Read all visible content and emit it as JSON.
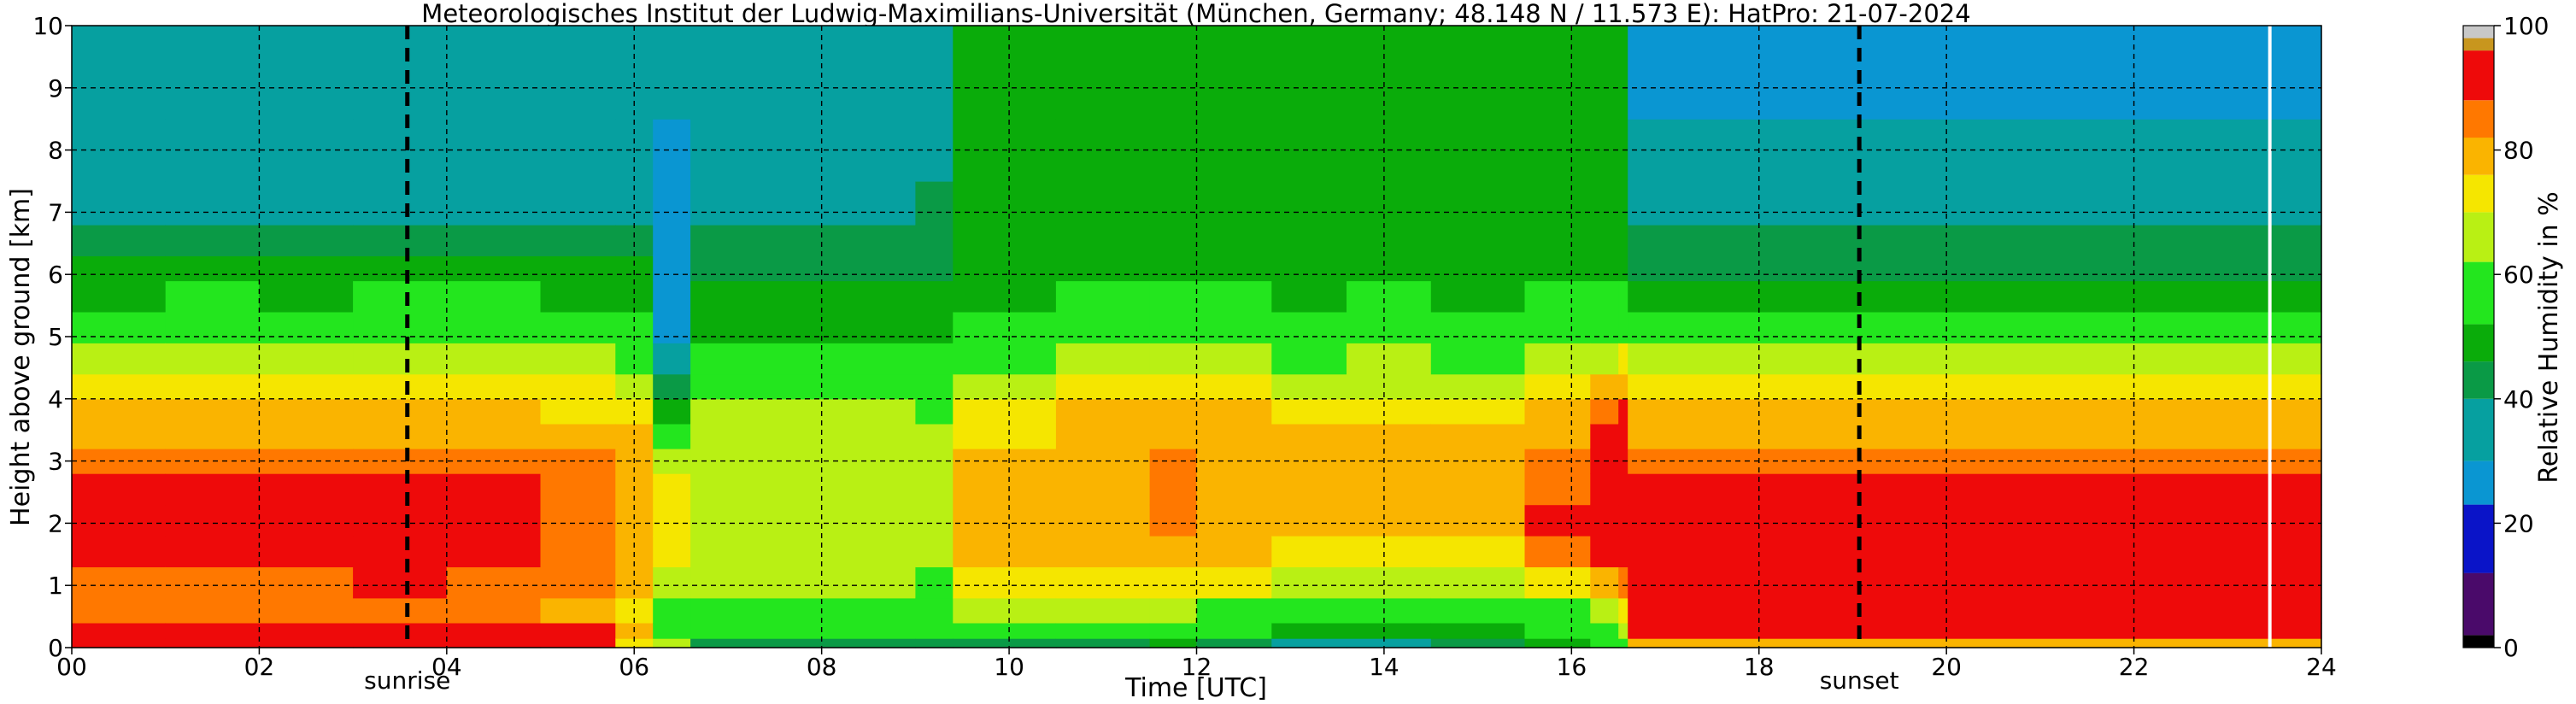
{
  "chart_data": {
    "type": "heatmap",
    "title": "Meteorologisches Institut der Ludwig-Maximilians-Universität (München, Germany; 48.148 N / 11.573 E):    HatPro: 21-07-2024",
    "xlabel": "Time [UTC]",
    "ylabel": "Height above ground [km]",
    "colorbar_label": "Relative Humidity in %",
    "xlim": [
      0,
      24
    ],
    "ylim": [
      0,
      10
    ],
    "clim": [
      0,
      100
    ],
    "x_ticks": [
      0,
      2,
      4,
      6,
      8,
      10,
      12,
      14,
      16,
      18,
      20,
      22,
      24
    ],
    "x_tick_labels": [
      "00",
      "02",
      "04",
      "06",
      "08",
      "10",
      "12",
      "14",
      "16",
      "18",
      "20",
      "22",
      "24"
    ],
    "y_ticks": [
      0,
      1,
      2,
      3,
      4,
      5,
      6,
      7,
      8,
      9,
      10
    ],
    "y_tick_labels": [
      "0",
      "1",
      "2",
      "3",
      "4",
      "5",
      "6",
      "7",
      "8",
      "9",
      "10"
    ],
    "colorbar_ticks": [
      0,
      20,
      40,
      60,
      80,
      100
    ],
    "colorbar_tick_labels": [
      "0",
      "20",
      "40",
      "60",
      "80",
      "100"
    ],
    "grid": true,
    "markers": [
      {
        "label": "sunrise",
        "time": 3.58
      },
      {
        "label": "sunset",
        "time": 19.07
      }
    ],
    "data_gap_time": 23.45,
    "colormap": [
      {
        "from": 0,
        "to": 2,
        "color": "#000000"
      },
      {
        "from": 2,
        "to": 12,
        "color": "#4a0a6a"
      },
      {
        "from": 12,
        "to": 23,
        "color": "#0a14c8"
      },
      {
        "from": 23,
        "to": 30,
        "color": "#0a96d2"
      },
      {
        "from": 30,
        "to": 40,
        "color": "#06a0a0"
      },
      {
        "from": 40,
        "to": 46,
        "color": "#0a9a46"
      },
      {
        "from": 46,
        "to": 52,
        "color": "#0aac0a"
      },
      {
        "from": 52,
        "to": 62,
        "color": "#23e61e"
      },
      {
        "from": 62,
        "to": 70,
        "color": "#b9f014"
      },
      {
        "from": 70,
        "to": 76,
        "color": "#f5e600"
      },
      {
        "from": 76,
        "to": 82,
        "color": "#fab400"
      },
      {
        "from": 82,
        "to": 88,
        "color": "#ff7800"
      },
      {
        "from": 88,
        "to": 96,
        "color": "#ee0a0a"
      },
      {
        "from": 96,
        "to": 98,
        "color": "#c8961e"
      },
      {
        "from": 98,
        "to": 100,
        "color": "#c8c8c8"
      }
    ],
    "heights": [
      0,
      0.15,
      0.4,
      0.8,
      1.3,
      1.8,
      2.3,
      2.8,
      3.2,
      3.6,
      4.0,
      4.4,
      4.9,
      5.4,
      5.9,
      6.3,
      6.8,
      7.5,
      8.5,
      10.0
    ],
    "time_profiles": [
      {
        "t": 0.0,
        "rh": [
          95,
          91,
          82,
          86,
          88,
          90,
          88,
          84,
          80,
          76,
          72,
          64,
          56,
          50,
          48,
          44,
          37,
          36,
          36,
          36
        ]
      },
      {
        "t": 1.0,
        "rh": [
          95,
          91,
          82,
          86,
          88,
          90,
          88,
          84,
          80,
          76,
          72,
          64,
          57,
          52,
          48,
          44,
          38,
          37,
          38,
          37
        ]
      },
      {
        "t": 2.0,
        "rh": [
          95,
          91,
          82,
          86,
          88,
          90,
          89,
          84,
          80,
          76,
          72,
          64,
          56,
          51,
          47,
          43,
          37,
          36,
          36,
          36
        ]
      },
      {
        "t": 3.0,
        "rh": [
          95,
          91,
          84,
          88,
          90,
          91,
          90,
          86,
          81,
          77,
          73,
          65,
          58,
          53,
          49,
          45,
          39,
          38,
          38,
          37
        ]
      },
      {
        "t": 4.0,
        "rh": [
          95,
          91,
          82,
          86,
          88,
          90,
          89,
          84,
          80,
          76,
          72,
          64,
          57,
          52,
          48,
          44,
          38,
          37,
          37,
          36
        ]
      },
      {
        "t": 5.0,
        "rh": [
          94,
          90,
          80,
          84,
          86,
          86,
          84,
          82,
          79,
          75,
          70,
          62,
          56,
          50,
          47,
          42,
          36,
          35,
          35,
          35
        ]
      },
      {
        "t": 5.8,
        "rh": [
          75,
          78,
          72,
          76,
          78,
          80,
          79,
          78,
          76,
          74,
          68,
          60,
          54,
          50,
          47,
          42,
          36,
          35,
          35,
          35
        ]
      },
      {
        "t": 6.2,
        "rh": [
          62,
          60,
          58,
          62,
          70,
          72,
          70,
          66,
          60,
          48,
          40,
          32,
          28,
          27,
          27,
          27,
          28,
          29,
          33,
          33
        ]
      },
      {
        "t": 6.6,
        "rh": [
          42,
          58,
          60,
          62,
          66,
          68,
          68,
          66,
          64,
          62,
          57,
          55,
          50,
          46,
          44,
          40,
          36,
          35,
          36,
          36
        ]
      },
      {
        "t": 8.0,
        "rh": [
          40,
          56,
          60,
          62,
          66,
          68,
          68,
          66,
          64,
          62,
          58,
          56,
          51,
          47,
          44,
          40,
          36,
          35,
          36,
          36
        ]
      },
      {
        "t": 9.0,
        "rh": [
          40,
          55,
          58,
          60,
          66,
          68,
          68,
          66,
          63,
          60,
          56,
          52,
          48,
          46,
          45,
          43,
          40,
          38,
          37,
          37
        ]
      },
      {
        "t": 9.4,
        "rh": [
          41,
          56,
          62,
          72,
          76,
          78,
          78,
          76,
          74,
          70,
          66,
          60,
          55,
          50,
          48,
          47,
          47,
          46,
          46,
          46
        ]
      },
      {
        "t": 10.5,
        "rh": [
          45,
          58,
          62,
          72,
          78,
          80,
          80,
          80,
          79,
          76,
          72,
          66,
          58,
          52,
          50,
          49,
          48,
          48,
          47,
          47
        ]
      },
      {
        "t": 11.5,
        "rh": [
          47,
          58,
          64,
          72,
          78,
          82,
          82,
          82,
          80,
          78,
          74,
          68,
          60,
          54,
          51,
          50,
          49,
          48,
          48,
          48
        ]
      },
      {
        "t": 12.0,
        "rh": [
          42,
          56,
          60,
          70,
          76,
          80,
          80,
          81,
          80,
          78,
          72,
          66,
          58,
          53,
          50,
          49,
          48,
          47,
          47,
          47
        ]
      },
      {
        "t": 12.8,
        "rh": [
          36,
          46,
          56,
          66,
          72,
          76,
          78,
          78,
          76,
          72,
          68,
          60,
          55,
          51,
          49,
          48,
          47,
          47,
          47,
          47
        ]
      },
      {
        "t": 13.6,
        "rh": [
          36,
          46,
          56,
          66,
          72,
          76,
          78,
          78,
          76,
          72,
          68,
          62,
          56,
          52,
          50,
          49,
          48,
          47,
          47,
          46
        ]
      },
      {
        "t": 14.5,
        "rh": [
          40,
          50,
          56,
          66,
          74,
          78,
          80,
          78,
          76,
          72,
          66,
          58,
          54,
          50,
          49,
          48,
          47,
          46,
          46,
          46
        ]
      },
      {
        "t": 15.5,
        "rh": [
          48,
          54,
          60,
          74,
          84,
          88,
          86,
          84,
          80,
          76,
          70,
          62,
          56,
          52,
          50,
          49,
          48,
          47,
          47,
          47
        ]
      },
      {
        "t": 16.2,
        "rh": [
          56,
          60,
          66,
          80,
          88,
          90,
          90,
          90,
          88,
          85,
          78,
          68,
          58,
          52,
          50,
          49,
          48,
          48,
          48,
          48
        ]
      },
      {
        "t": 16.5,
        "rh": [
          60,
          62,
          70,
          84,
          90,
          91,
          91,
          91,
          90,
          88,
          80,
          70,
          60,
          54,
          51,
          50,
          49,
          48,
          48,
          48
        ]
      },
      {
        "t": 16.6,
        "rh": [
          78,
          89,
          90,
          90,
          90,
          90,
          90,
          86,
          80,
          76,
          72,
          66,
          54,
          46,
          43,
          41,
          37,
          36,
          28,
          28
        ]
      },
      {
        "t": 24.0,
        "rh": [
          78,
          89,
          90,
          90,
          90,
          90,
          90,
          86,
          80,
          76,
          72,
          66,
          54,
          46,
          43,
          41,
          37,
          36,
          28,
          28
        ]
      }
    ]
  }
}
